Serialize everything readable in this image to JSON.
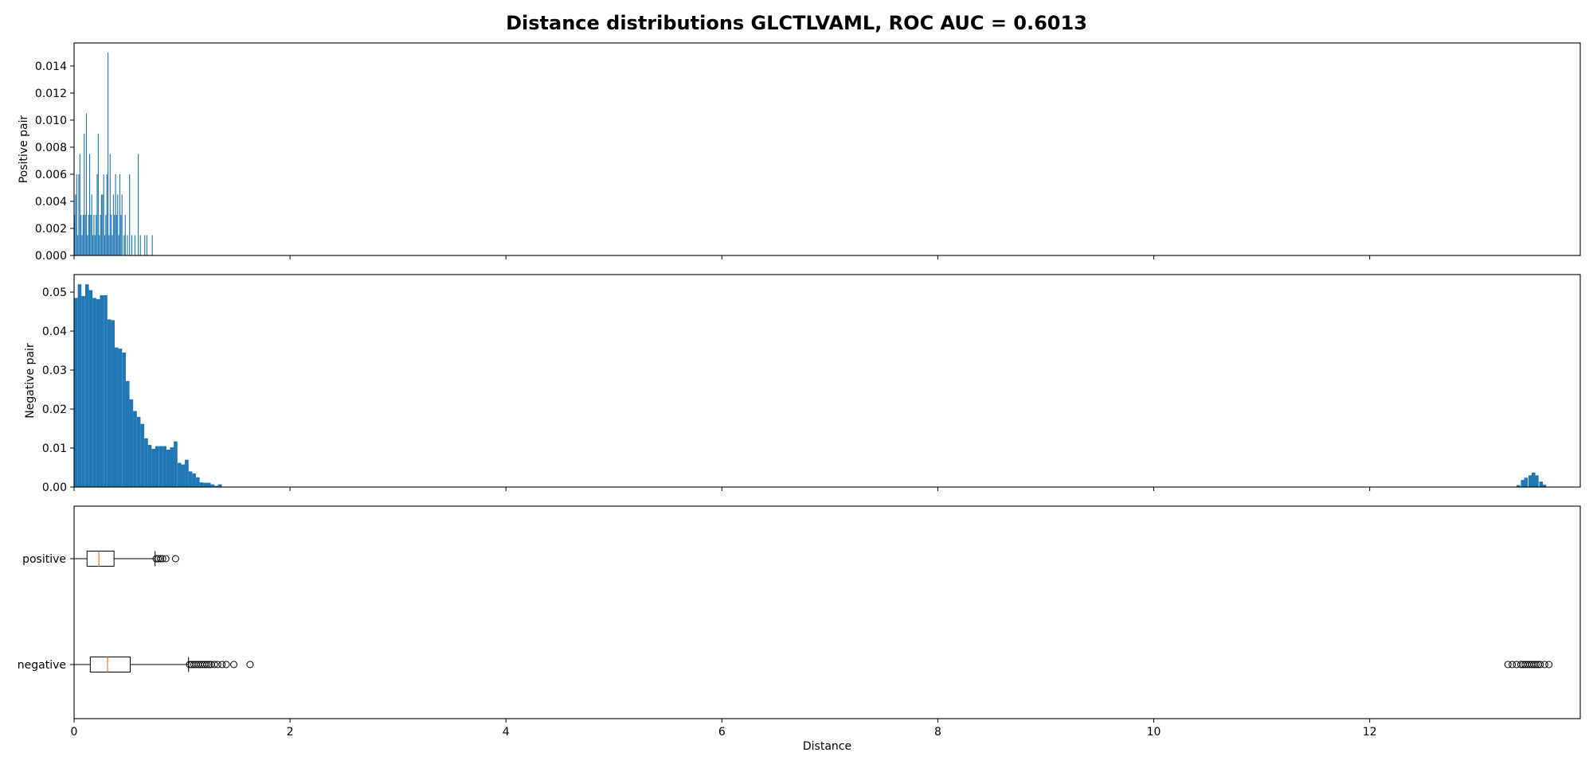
{
  "chart_data": {
    "title": "Distance distributions GLCTLVAML, ROC AUC = 0.6013",
    "xlabel": "Distance",
    "x_ticks": [
      "0",
      "2",
      "4",
      "6",
      "8",
      "10",
      "12"
    ],
    "x_tick_values": [
      0,
      2,
      4,
      6,
      8,
      10,
      12
    ],
    "xlim": [
      0,
      13.95
    ],
    "bar_color": "#1f77b4",
    "median_color": "#ff7f0e",
    "panels": [
      {
        "type": "bar",
        "ylabel": "Positive pair",
        "ylim": [
          0,
          0.0157
        ],
        "y_ticks": [
          "0.000",
          "0.002",
          "0.004",
          "0.006",
          "0.008",
          "0.010",
          "0.012",
          "0.014"
        ],
        "y_tick_values": [
          0,
          0.002,
          0.004,
          0.006,
          0.008,
          0.01,
          0.012,
          0.014
        ],
        "bin_width": 0.0083,
        "bins": [
          [
            0.0,
            0.003
          ],
          [
            0.01,
            0.0045
          ],
          [
            0.02,
            0.006
          ],
          [
            0.03,
            0.0015
          ],
          [
            0.04,
            0.006
          ],
          [
            0.05,
            0.0075
          ],
          [
            0.06,
            0.003
          ],
          [
            0.07,
            0.0015
          ],
          [
            0.08,
            0.003
          ],
          [
            0.09,
            0.009
          ],
          [
            0.1,
            0.003
          ],
          [
            0.11,
            0.0105
          ],
          [
            0.12,
            0.0015
          ],
          [
            0.13,
            0.003
          ],
          [
            0.14,
            0.0075
          ],
          [
            0.15,
            0.003
          ],
          [
            0.16,
            0.0045
          ],
          [
            0.17,
            0.0015
          ],
          [
            0.18,
            0.003
          ],
          [
            0.19,
            0.0015
          ],
          [
            0.2,
            0.003
          ],
          [
            0.21,
            0.006
          ],
          [
            0.22,
            0.009
          ],
          [
            0.23,
            0.0015
          ],
          [
            0.24,
            0.003
          ],
          [
            0.25,
            0.0045
          ],
          [
            0.26,
            0.0045
          ],
          [
            0.27,
            0.006
          ],
          [
            0.28,
            0.0015
          ],
          [
            0.29,
            0.003
          ],
          [
            0.3,
            0.006
          ],
          [
            0.31,
            0.015
          ],
          [
            0.32,
            0.0015
          ],
          [
            0.33,
            0.0075
          ],
          [
            0.34,
            0.003
          ],
          [
            0.35,
            0.0015
          ],
          [
            0.36,
            0.0045
          ],
          [
            0.37,
            0.003
          ],
          [
            0.38,
            0.006
          ],
          [
            0.39,
            0.003
          ],
          [
            0.4,
            0.0045
          ],
          [
            0.41,
            0.0015
          ],
          [
            0.42,
            0.006
          ],
          [
            0.43,
            0.003
          ],
          [
            0.44,
            0.0045
          ],
          [
            0.46,
            0.0015
          ],
          [
            0.47,
            0.003
          ],
          [
            0.49,
            0.0015
          ],
          [
            0.51,
            0.006
          ],
          [
            0.53,
            0.0015
          ],
          [
            0.56,
            0.0015
          ],
          [
            0.59,
            0.0075
          ],
          [
            0.61,
            0.0015
          ],
          [
            0.65,
            0.0015
          ],
          [
            0.67,
            0.0015
          ],
          [
            0.72,
            0.0015
          ]
        ]
      },
      {
        "type": "bar",
        "ylabel": "Negative pair",
        "ylim": [
          0,
          0.0545
        ],
        "y_ticks": [
          "0.00",
          "0.01",
          "0.02",
          "0.03",
          "0.04",
          "0.05"
        ],
        "y_tick_values": [
          0,
          0.01,
          0.02,
          0.03,
          0.04,
          0.05
        ],
        "bin_width": 0.0342,
        "bins": [
          [
            0.0,
            0.0485
          ],
          [
            0.034,
            0.052
          ],
          [
            0.068,
            0.049
          ],
          [
            0.103,
            0.052
          ],
          [
            0.137,
            0.0505
          ],
          [
            0.171,
            0.0485
          ],
          [
            0.205,
            0.0482
          ],
          [
            0.239,
            0.0492
          ],
          [
            0.274,
            0.0492
          ],
          [
            0.308,
            0.043
          ],
          [
            0.342,
            0.0428
          ],
          [
            0.376,
            0.0358
          ],
          [
            0.41,
            0.0355
          ],
          [
            0.445,
            0.0345
          ],
          [
            0.479,
            0.0272
          ],
          [
            0.513,
            0.0225
          ],
          [
            0.547,
            0.0195
          ],
          [
            0.581,
            0.018
          ],
          [
            0.616,
            0.0162
          ],
          [
            0.65,
            0.0125
          ],
          [
            0.684,
            0.0108
          ],
          [
            0.718,
            0.0098
          ],
          [
            0.752,
            0.0105
          ],
          [
            0.787,
            0.0105
          ],
          [
            0.821,
            0.0105
          ],
          [
            0.855,
            0.0096
          ],
          [
            0.889,
            0.0102
          ],
          [
            0.923,
            0.0117
          ],
          [
            0.958,
            0.0062
          ],
          [
            0.992,
            0.0058
          ],
          [
            1.026,
            0.007
          ],
          [
            1.06,
            0.004
          ],
          [
            1.094,
            0.0035
          ],
          [
            1.129,
            0.0025
          ],
          [
            1.163,
            0.0012
          ],
          [
            1.197,
            0.0011
          ],
          [
            1.231,
            0.0011
          ],
          [
            1.266,
            0.0007
          ],
          [
            1.3,
            0.0003
          ],
          [
            1.334,
            0.0007
          ],
          [
            13.36,
            0.0005
          ],
          [
            13.4,
            0.0018
          ],
          [
            13.43,
            0.0024
          ],
          [
            13.47,
            0.003
          ],
          [
            13.5,
            0.0037
          ],
          [
            13.53,
            0.003
          ],
          [
            13.57,
            0.0014
          ],
          [
            13.6,
            0.0006
          ]
        ]
      },
      {
        "type": "box",
        "categories": [
          "positive",
          "negative"
        ],
        "boxes": [
          {
            "label": "positive",
            "whisker_low": 0.0,
            "q1": 0.12,
            "median": 0.23,
            "q3": 0.37,
            "whisker_high": 0.75,
            "fliers": [
              0.76,
              0.78,
              0.8,
              0.82,
              0.85,
              0.94
            ]
          },
          {
            "label": "negative",
            "whisker_low": 0.0,
            "q1": 0.15,
            "median": 0.31,
            "q3": 0.52,
            "whisker_high": 1.06,
            "fliers": [
              1.07,
              1.09,
              1.11,
              1.13,
              1.15,
              1.17,
              1.19,
              1.21,
              1.23,
              1.25,
              1.27,
              1.3,
              1.33,
              1.37,
              1.41,
              1.48,
              1.63,
              13.28,
              13.32,
              13.36,
              13.4,
              13.42,
              13.44,
              13.46,
              13.48,
              13.5,
              13.52,
              13.54,
              13.56,
              13.58,
              13.62,
              13.66
            ]
          }
        ]
      }
    ]
  }
}
